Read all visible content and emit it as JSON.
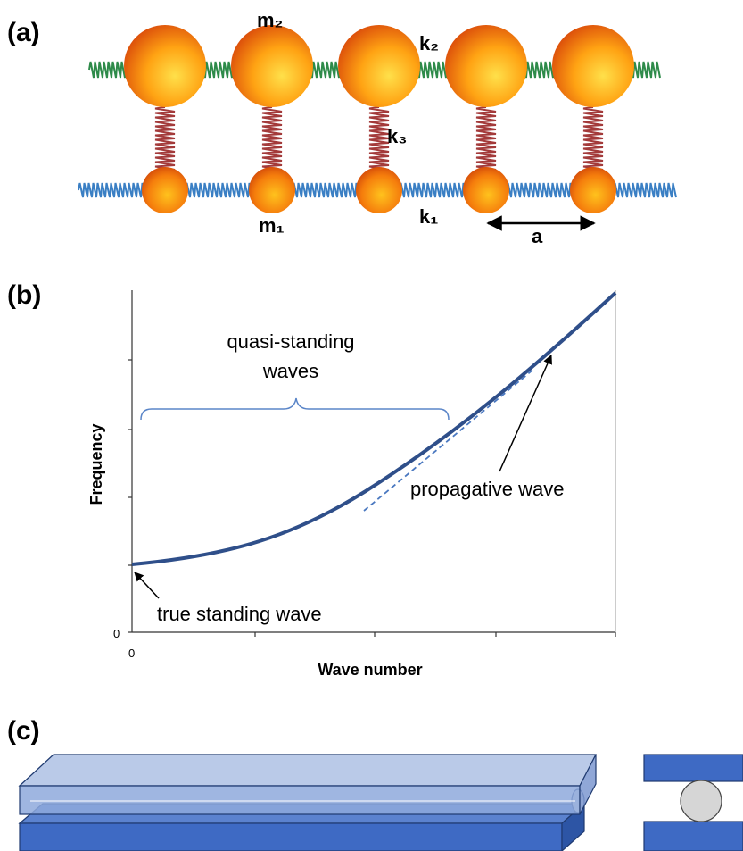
{
  "panel_a": {
    "label": "(a)",
    "m2": "m₂",
    "k2": "k₂",
    "k3": "k₃",
    "m1": "m₁",
    "k1": "k₁",
    "a": "a"
  },
  "panel_b": {
    "label": "(b)",
    "y_axis_label": "Frequency",
    "x_axis_label": "Wave number",
    "y_tick": "0",
    "x_tick": "0",
    "annotations": {
      "quasi_standing": [
        "quasi-standing",
        "waves"
      ],
      "propagative": "propagative wave",
      "true_standing": "true standing wave"
    }
  },
  "panel_c": {
    "label": "(c)"
  }
}
